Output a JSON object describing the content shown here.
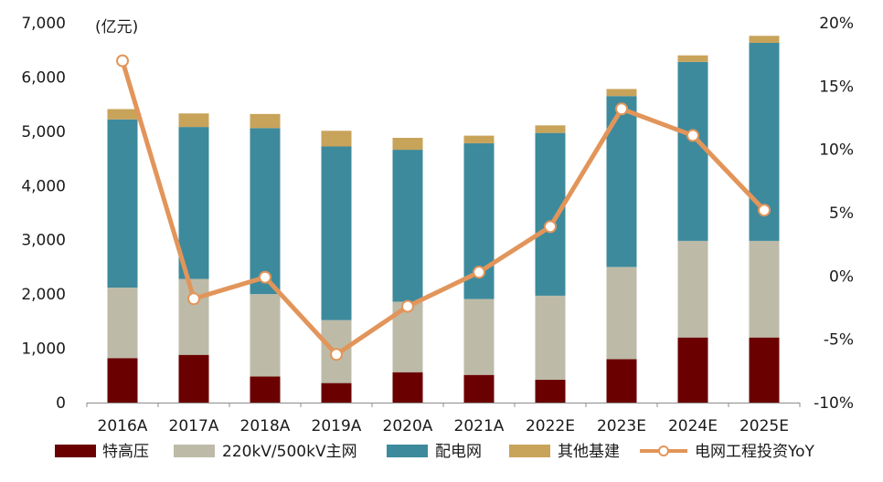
{
  "chart_data": {
    "type": "bar",
    "unit_label": "(亿元)",
    "categories": [
      "2016A",
      "2017A",
      "2018A",
      "2019A",
      "2020A",
      "2021A",
      "2022E",
      "2023E",
      "2024E",
      "2025E"
    ],
    "stacked": true,
    "series": [
      {
        "name": "特高压",
        "color": "#6b0000",
        "values": [
          820,
          880,
          480,
          360,
          560,
          510,
          420,
          800,
          1200,
          1200
        ]
      },
      {
        "name": "220kV/500kV主网",
        "color": "#bdbba8",
        "values": [
          1300,
          1400,
          1520,
          1160,
          1300,
          1400,
          1550,
          1700,
          1780,
          1780
        ]
      },
      {
        "name": "配电网",
        "color": "#3d8a9c",
        "values": [
          3100,
          2800,
          3060,
          3200,
          2800,
          2870,
          3000,
          3150,
          3300,
          3650
        ]
      },
      {
        "name": "其他基建",
        "color": "#c8a35a",
        "values": [
          190,
          250,
          260,
          290,
          220,
          140,
          140,
          130,
          120,
          130
        ]
      }
    ],
    "line_series": {
      "name": "电网工程投资YoY",
      "color": "#e2955a",
      "axis": "right",
      "values": [
        17.0,
        -1.8,
        -0.1,
        -6.2,
        -2.4,
        0.3,
        3.9,
        13.2,
        11.1,
        5.2
      ]
    },
    "ylim": [
      0,
      7000
    ],
    "yticks": [
      0,
      1000,
      2000,
      3000,
      4000,
      5000,
      6000,
      7000
    ],
    "ytick_labels": [
      "0",
      "1,000",
      "2,000",
      "3,000",
      "4,000",
      "5,000",
      "6,000",
      "7,000"
    ],
    "y2lim": [
      -10,
      20
    ],
    "y2ticks": [
      -10,
      -5,
      0,
      5,
      10,
      15,
      20
    ],
    "y2tick_labels": [
      "-10%",
      "-5%",
      "0%",
      "5%",
      "10%",
      "15%",
      "20%"
    ],
    "grid": false,
    "legend_position": "bottom"
  }
}
